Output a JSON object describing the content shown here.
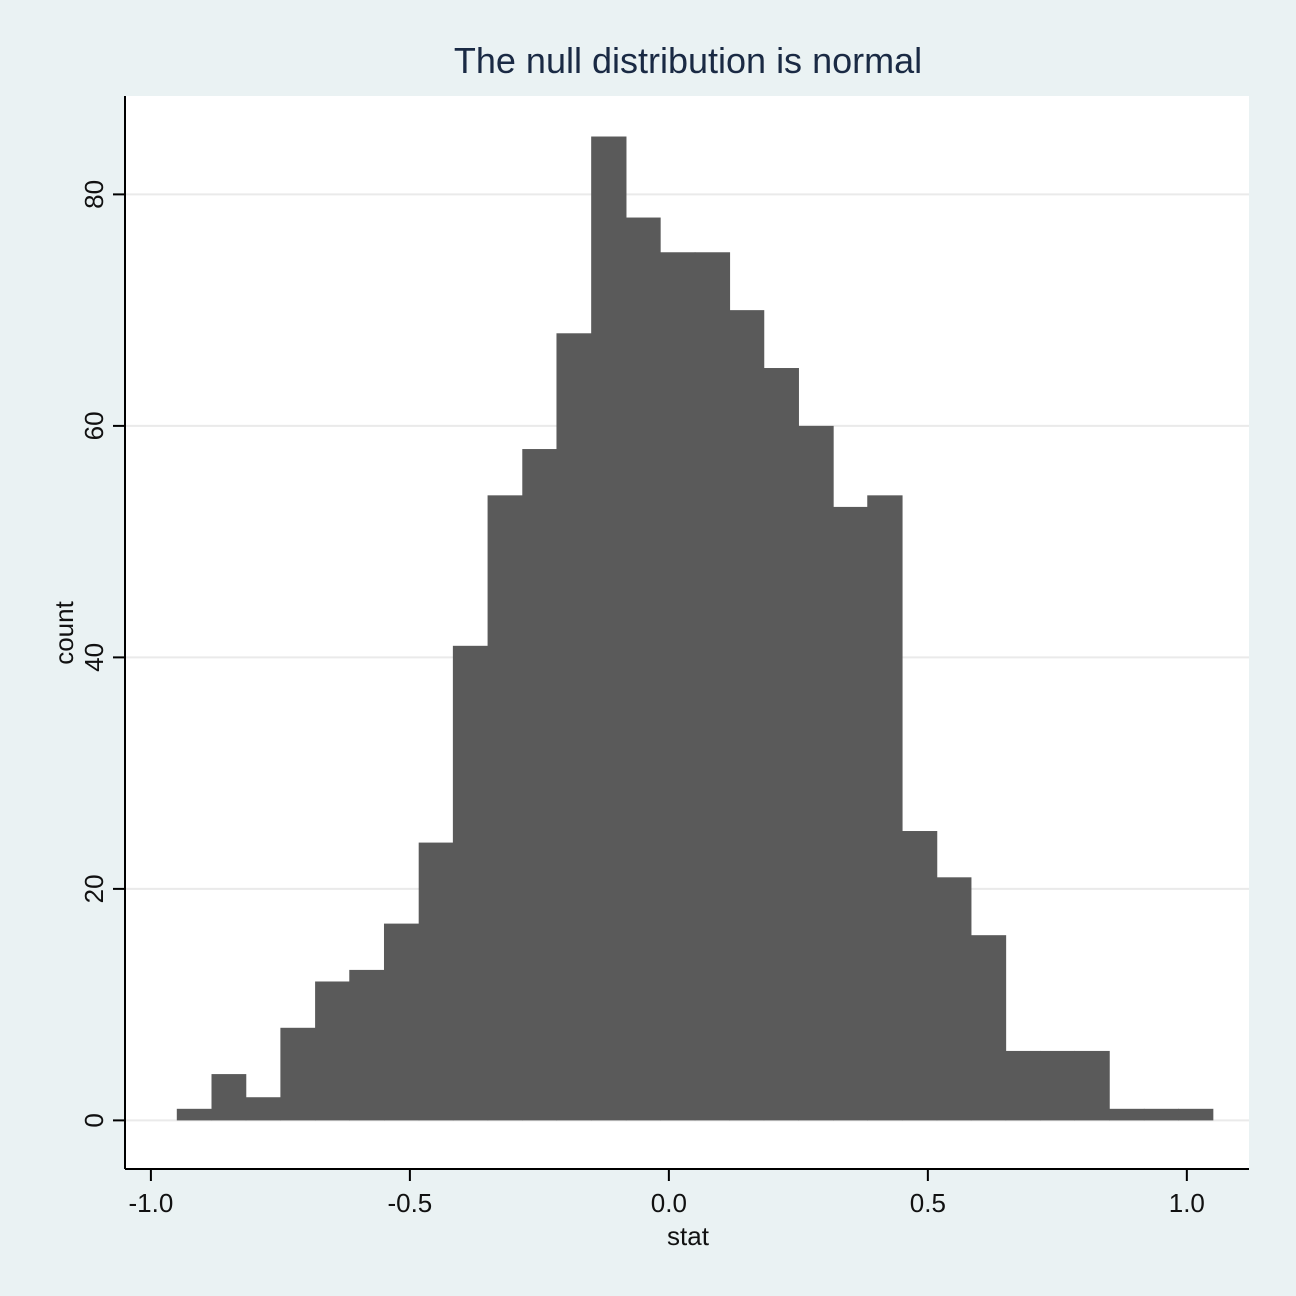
{
  "chart_data": {
    "type": "bar",
    "subtype": "histogram",
    "title": "The null distribution is normal",
    "xlabel": "stat",
    "ylabel": "count",
    "bins": [
      {
        "x0": -0.95,
        "x1": -0.883,
        "count": 1
      },
      {
        "x0": -0.883,
        "x1": -0.817,
        "count": 4
      },
      {
        "x0": -0.817,
        "x1": -0.75,
        "count": 2
      },
      {
        "x0": -0.75,
        "x1": -0.683,
        "count": 8
      },
      {
        "x0": -0.683,
        "x1": -0.617,
        "count": 12
      },
      {
        "x0": -0.617,
        "x1": -0.55,
        "count": 13
      },
      {
        "x0": -0.55,
        "x1": -0.483,
        "count": 17
      },
      {
        "x0": -0.483,
        "x1": -0.417,
        "count": 24
      },
      {
        "x0": -0.417,
        "x1": -0.35,
        "count": 41
      },
      {
        "x0": -0.35,
        "x1": -0.283,
        "count": 54
      },
      {
        "x0": -0.283,
        "x1": -0.217,
        "count": 58
      },
      {
        "x0": -0.217,
        "x1": -0.15,
        "count": 68
      },
      {
        "x0": -0.15,
        "x1": -0.083,
        "count": 85
      },
      {
        "x0": -0.083,
        "x1": -0.017,
        "count": 78
      },
      {
        "x0": -0.017,
        "x1": 0.05,
        "count": 75
      },
      {
        "x0": 0.05,
        "x1": 0.117,
        "count": 75
      },
      {
        "x0": 0.117,
        "x1": 0.183,
        "count": 70
      },
      {
        "x0": 0.183,
        "x1": 0.25,
        "count": 65
      },
      {
        "x0": 0.25,
        "x1": 0.317,
        "count": 60
      },
      {
        "x0": 0.317,
        "x1": 0.383,
        "count": 53
      },
      {
        "x0": 0.383,
        "x1": 0.45,
        "count": 54
      },
      {
        "x0": 0.45,
        "x1": 0.517,
        "count": 25
      },
      {
        "x0": 0.517,
        "x1": 0.583,
        "count": 21
      },
      {
        "x0": 0.583,
        "x1": 0.65,
        "count": 16
      },
      {
        "x0": 0.65,
        "x1": 0.717,
        "count": 6
      },
      {
        "x0": 0.717,
        "x1": 0.783,
        "count": 6
      },
      {
        "x0": 0.783,
        "x1": 0.85,
        "count": 6
      },
      {
        "x0": 0.85,
        "x1": 0.917,
        "count": 1
      },
      {
        "x0": 0.917,
        "x1": 0.983,
        "count": 1
      },
      {
        "x0": 0.983,
        "x1": 1.05,
        "count": 1
      }
    ],
    "xticks": [
      -1.0,
      -0.5,
      0.0,
      0.5,
      1.0
    ],
    "xtick_labels": [
      "-1.0",
      "-0.5",
      "0.0",
      "0.5",
      "1.0"
    ],
    "yticks": [
      0,
      20,
      40,
      60,
      80
    ],
    "ytick_labels": [
      "0",
      "20",
      "40",
      "60",
      "80"
    ],
    "xlim": [
      -1.05,
      1.12
    ],
    "ylim": [
      -4.2,
      88.5
    ],
    "grid": true,
    "colors": {
      "background": "#eaf2f3",
      "plot_background": "#ffffff",
      "bar": "#5a5a5a",
      "grid": "#eaeaea",
      "axis": "#000000"
    }
  }
}
